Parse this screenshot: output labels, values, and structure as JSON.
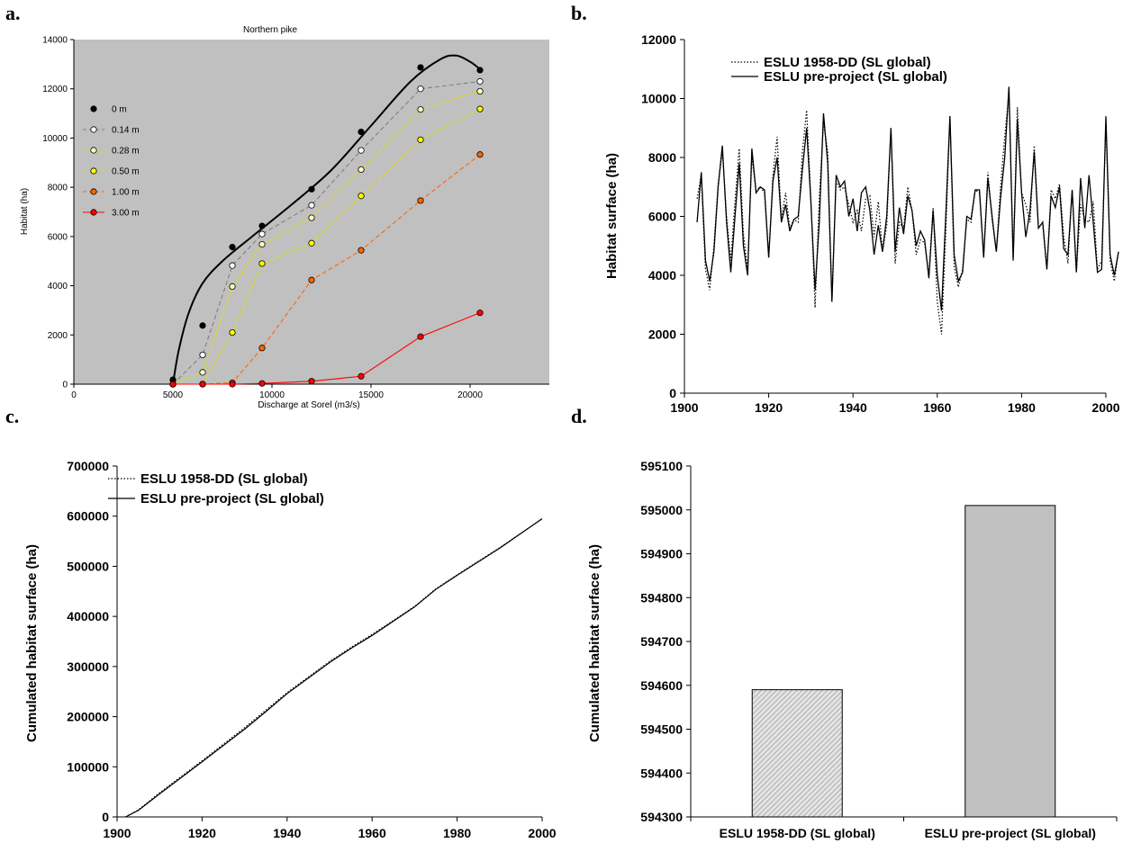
{
  "panels": {
    "a": "a.",
    "b": "b.",
    "c": "c.",
    "d": "d."
  },
  "colors": {
    "plot_bg_a": "#c0c0c0",
    "bar_fill": "#c0c0c0",
    "line": "#000000"
  },
  "chart_data": [
    {
      "panel": "a",
      "type": "line",
      "title": "Northern pike",
      "xlabel": "Discharge at Sorel (m3/s)",
      "ylabel": "Habitat (ha)",
      "xlim": [
        0,
        24000
      ],
      "ylim": [
        0,
        14000
      ],
      "xticks": [
        0,
        5000,
        10000,
        15000,
        20000
      ],
      "yticks": [
        0,
        2000,
        4000,
        6000,
        8000,
        10000,
        12000,
        14000
      ],
      "legend_position": "left",
      "x": [
        5000,
        6500,
        8000,
        9500,
        12000,
        14500,
        17500,
        20500
      ],
      "series": [
        {
          "name": "0 m",
          "color": "#000000",
          "marker": "#000000",
          "style": "solid-fit",
          "values": [
            180,
            2380,
            5570,
            6430,
            7920,
            10250,
            12870,
            12760
          ],
          "fit": [
            [
              5000,
              0
            ],
            [
              5300,
              1400
            ],
            [
              5800,
              2900
            ],
            [
              6500,
              4100
            ],
            [
              7500,
              5000
            ],
            [
              9000,
              6000
            ],
            [
              11000,
              7300
            ],
            [
              13000,
              8700
            ],
            [
              15000,
              10500
            ],
            [
              17000,
              12300
            ],
            [
              18500,
              13200
            ],
            [
              19300,
              13350
            ],
            [
              20000,
              13100
            ],
            [
              20500,
              12800
            ]
          ]
        },
        {
          "name": "0.14 m",
          "color": "#808080",
          "marker": "#ffffff",
          "style": "dashed",
          "values": [
            0,
            1190,
            4820,
            6100,
            7270,
            9500,
            12000,
            12300
          ]
        },
        {
          "name": "0.28 m",
          "color": "#e0e000",
          "marker": "#ffffc0",
          "style": "dashed",
          "values": [
            0,
            480,
            3970,
            5680,
            6760,
            8720,
            11160,
            11900
          ]
        },
        {
          "name": "0.50 m",
          "color": "#e0e000",
          "marker": "#ffff00",
          "style": "dashed",
          "values": [
            0,
            0,
            2100,
            4900,
            5730,
            7650,
            9930,
            11180
          ]
        },
        {
          "name": "1.00 m",
          "color": "#ff6600",
          "marker": "#ff6600",
          "style": "dashed",
          "values": [
            0,
            0,
            60,
            1470,
            4230,
            5440,
            7460,
            9330
          ]
        },
        {
          "name": "3.00 m",
          "color": "#ff0000",
          "marker": "#ff0000",
          "style": "solid",
          "values": [
            0,
            0,
            0,
            30,
            120,
            320,
            1930,
            2900
          ]
        }
      ]
    },
    {
      "panel": "b",
      "type": "line",
      "title": "",
      "xlabel": "",
      "ylabel": "Habitat surface (ha)",
      "xlim": [
        1900,
        2000
      ],
      "ylim": [
        0,
        12000
      ],
      "xticks": [
        1900,
        1920,
        1940,
        1960,
        1980,
        2000
      ],
      "yticks": [
        0,
        2000,
        4000,
        6000,
        8000,
        10000,
        12000
      ],
      "legend_position": "top-left",
      "x_start": 1903,
      "series": [
        {
          "name": "ESLU 1958-DD (SL global)",
          "style": "dotted",
          "values": [
            6600,
            7400,
            4200,
            3500,
            5000,
            7100,
            8200,
            6000,
            4500,
            6500,
            8300,
            5400,
            4200,
            8000,
            6900,
            7000,
            6800,
            4600,
            7400,
            8700,
            5900,
            6800,
            5600,
            5900,
            5800,
            8200,
            9600,
            6600,
            2900,
            6600,
            9200,
            8200,
            3100,
            7200,
            6900,
            7000,
            6400,
            5800,
            6200,
            5500,
            6600,
            6700,
            5300,
            6500,
            4800,
            5700,
            9000,
            4400,
            5800,
            5600,
            7000,
            6200,
            4700,
            5200,
            5100,
            4000,
            6300,
            3100,
            2000,
            5400,
            9400,
            4300,
            3600,
            4200,
            5900,
            5800,
            6900,
            6800,
            4700,
            7500,
            5900,
            4800,
            7000,
            8700,
            10200,
            4600,
            9700,
            6800,
            6400,
            5800,
            8400,
            5600,
            5800,
            4200,
            6900,
            6600,
            7100,
            5300,
            4400,
            6900,
            4100,
            6400,
            5900,
            5800,
            6500,
            4200,
            4500,
            9200,
            4500,
            3800,
            4800
          ]
        },
        {
          "name": "ESLU pre-project (SL global)",
          "style": "solid",
          "values": [
            5800,
            7500,
            4500,
            3800,
            4800,
            7000,
            8400,
            5800,
            4100,
            6000,
            7800,
            5000,
            4000,
            8300,
            6800,
            7000,
            6900,
            4600,
            7200,
            8000,
            5800,
            6400,
            5500,
            5900,
            6000,
            7600,
            9000,
            6500,
            3500,
            5800,
            9500,
            7800,
            3100,
            7400,
            7000,
            7200,
            6000,
            6600,
            5500,
            6800,
            7000,
            6200,
            4700,
            5700,
            4800,
            6000,
            9000,
            4800,
            6300,
            5400,
            6700,
            6200,
            5000,
            5500,
            5200,
            3900,
            6200,
            4000,
            2800,
            6000,
            9400,
            4700,
            3800,
            4100,
            6000,
            5900,
            6900,
            6900,
            4600,
            7300,
            6000,
            4800,
            6600,
            8000,
            10400,
            4500,
            9300,
            6800,
            5300,
            6200,
            8200,
            5600,
            5800,
            4200,
            6700,
            6300,
            7000,
            4900,
            4700,
            6900,
            4100,
            7300,
            5600,
            7400,
            5800,
            4100,
            4200,
            9400,
            4700,
            4000,
            4800
          ]
        }
      ]
    },
    {
      "panel": "c",
      "type": "line",
      "title": "",
      "xlabel": "",
      "ylabel": "Cumulated habitat surface (ha)",
      "xlim": [
        1900,
        2000
      ],
      "ylim": [
        0,
        700000
      ],
      "xticks": [
        1900,
        1920,
        1940,
        1960,
        1980,
        2000
      ],
      "yticks": [
        0,
        100000,
        200000,
        300000,
        400000,
        500000,
        600000,
        700000
      ],
      "legend_position": "top-left",
      "series": [
        {
          "name": "ESLU 1958-DD (SL global)",
          "style": "dotted",
          "points": [
            [
              1902,
              0
            ],
            [
              1905,
              14000
            ],
            [
              1910,
              48000
            ],
            [
              1920,
              112000
            ],
            [
              1930,
              178000
            ],
            [
              1935,
              213000
            ],
            [
              1940,
              248000
            ],
            [
              1950,
              310000
            ],
            [
              1955,
              338000
            ],
            [
              1960,
              364000
            ],
            [
              1970,
              420000
            ],
            [
              1975,
              455000
            ],
            [
              1980,
              483000
            ],
            [
              1990,
              537000
            ],
            [
              2000,
              594590
            ]
          ]
        },
        {
          "name": "ESLU pre-project (SL global)",
          "style": "solid",
          "points": [
            [
              1902,
              0
            ],
            [
              1905,
              13000
            ],
            [
              1910,
              46000
            ],
            [
              1920,
              110000
            ],
            [
              1930,
              175000
            ],
            [
              1935,
              210000
            ],
            [
              1940,
              246000
            ],
            [
              1950,
              308000
            ],
            [
              1955,
              336000
            ],
            [
              1960,
              362000
            ],
            [
              1970,
              419000
            ],
            [
              1975,
              454000
            ],
            [
              1980,
              482000
            ],
            [
              1990,
              536000
            ],
            [
              2000,
              595010
            ]
          ]
        }
      ]
    },
    {
      "panel": "d",
      "type": "bar",
      "title": "",
      "xlabel": "",
      "ylabel": "Cumulated habitat surface (ha)",
      "ylim": [
        594300,
        595100
      ],
      "yticks": [
        594300,
        594400,
        594500,
        594600,
        594700,
        594800,
        594900,
        595000,
        595100
      ],
      "categories": [
        "ESLU 1958-DD (SL global)",
        "ESLU pre-project (SL global)"
      ],
      "values": [
        594590,
        595010
      ],
      "fills": [
        "hatched",
        "#c0c0c0"
      ]
    }
  ]
}
